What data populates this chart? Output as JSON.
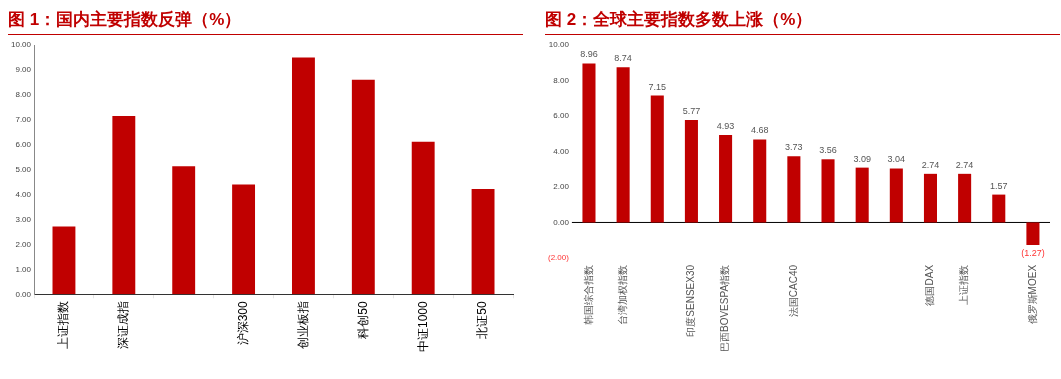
{
  "chart_data": [
    {
      "type": "bar",
      "title": "图 1：国内主要指数反弹（%）",
      "categories": [
        "上证指数",
        "深证成指",
        null,
        "沪深300",
        "创业板指",
        "科创50",
        "中证1000",
        "北证50"
      ],
      "values": [
        2.72,
        7.15,
        5.14,
        4.4,
        9.5,
        8.61,
        6.12,
        4.22
      ],
      "color": "#c00000",
      "ylim": [
        0,
        10
      ],
      "yticks": [
        {
          "value": 0,
          "label": "0.00"
        },
        {
          "value": 1,
          "label": "1.00"
        },
        {
          "value": 2,
          "label": "2.00"
        },
        {
          "value": 3,
          "label": "3.00"
        },
        {
          "value": 4,
          "label": "4.00"
        },
        {
          "value": 5,
          "label": "5.00"
        },
        {
          "value": 6,
          "label": "6.00"
        },
        {
          "value": 7,
          "label": "7.00"
        },
        {
          "value": 8,
          "label": "8.00"
        },
        {
          "value": 9,
          "label": "9.00"
        },
        {
          "value": 10,
          "label": "10.00"
        }
      ],
      "grid": false,
      "legend": false
    },
    {
      "type": "bar",
      "title": "图 2：全球主要指数多数上涨（%）",
      "categories": [
        "韩国综合指数",
        "台湾加权指数",
        null,
        "印度SENSEX30",
        "巴西BOVESPA指数",
        null,
        "法国CAC40",
        null,
        null,
        null,
        "德国DAX",
        "上证指数",
        null,
        "俄罗斯MOEX"
      ],
      "values": [
        8.96,
        8.74,
        7.15,
        5.77,
        4.93,
        4.68,
        3.73,
        3.56,
        3.09,
        3.04,
        2.74,
        2.74,
        1.57,
        -1.27
      ],
      "color": "#c00000",
      "value_labels": [
        "8.96",
        "8.74",
        "7.15",
        "5.77",
        "4.93",
        "4.68",
        "3.73",
        "3.56",
        "3.09",
        "3.04",
        "2.74",
        "2.74",
        "1.57",
        "(1.27)"
      ],
      "ylim": [
        -2,
        10
      ],
      "yticks": [
        {
          "value": -2,
          "label": "(2.00)"
        },
        {
          "value": 0,
          "label": "0.00"
        },
        {
          "value": 2,
          "label": "2.00"
        },
        {
          "value": 4,
          "label": "4.00"
        },
        {
          "value": 6,
          "label": "6.00"
        },
        {
          "value": 8,
          "label": "8.00"
        },
        {
          "value": 10,
          "label": "10.00"
        }
      ],
      "ref_lines": [
        {
          "axis": "y",
          "value": 0,
          "color": "#000000"
        }
      ],
      "grid": false,
      "legend": false
    }
  ]
}
